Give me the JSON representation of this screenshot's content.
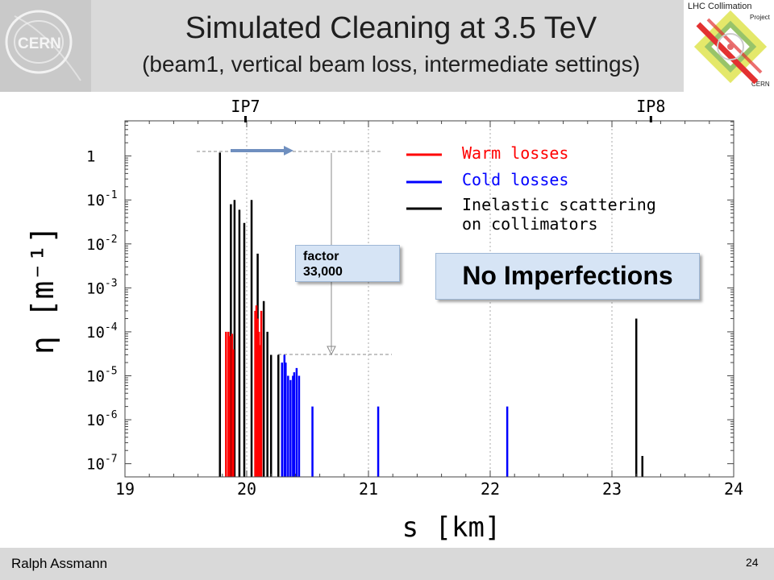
{
  "slide": {
    "title": "Simulated Cleaning at 3.5 TeV",
    "subtitle": "(beam1, vertical beam loss, intermediate settings)",
    "author": "Ralph Assmann",
    "page": "24",
    "logo_left": "CERN",
    "logo_right": {
      "title": "LHC Collimation",
      "project": "Project",
      "org": "CERN"
    }
  },
  "annotations": {
    "factor_line1": "factor",
    "factor_line2": "33,000",
    "no_imperfections": "No Imperfections"
  },
  "colors": {
    "warm": "#ff0000",
    "cold": "#0000ff",
    "inelastic": "#000000",
    "callout_bg": "#d6e4f5"
  },
  "chart_data": {
    "type": "bar",
    "xlabel": "s [km]",
    "ylabel": "η [m⁻¹]",
    "xlim": [
      19,
      24
    ],
    "ylim_log10": [
      -7.3,
      0.8
    ],
    "x_ticks": [
      {
        "value": 19,
        "label": "19"
      },
      {
        "value": 20,
        "label": "20"
      },
      {
        "value": 21,
        "label": "21"
      },
      {
        "value": 22,
        "label": "22"
      },
      {
        "value": 23,
        "label": "23"
      },
      {
        "value": 24,
        "label": "24"
      }
    ],
    "y_ticks": [
      {
        "exp": 0,
        "label": "1"
      },
      {
        "exp": -1,
        "label": "10",
        "sup": "-1"
      },
      {
        "exp": -2,
        "label": "10",
        "sup": "-2"
      },
      {
        "exp": -3,
        "label": "10",
        "sup": "-3"
      },
      {
        "exp": -4,
        "label": "10",
        "sup": "-4"
      },
      {
        "exp": -5,
        "label": "10",
        "sup": "-5"
      },
      {
        "exp": -6,
        "label": "10",
        "sup": "-6"
      },
      {
        "exp": -7,
        "label": "10",
        "sup": "-7"
      }
    ],
    "markers": [
      {
        "label": "IP7",
        "s": 19.99
      },
      {
        "label": "IP8",
        "s": 23.32
      }
    ],
    "legend": [
      "Warm losses",
      "Cold losses",
      "Inelastic scattering",
      "on collimators"
    ],
    "legend_position": "top-right",
    "series": [
      {
        "name": "Inelastic scattering on collimators",
        "color": "#000000",
        "s": [
          19.78,
          19.87,
          19.9,
          19.94,
          19.98,
          20.04,
          20.09,
          20.14,
          20.17,
          20.2,
          20.26,
          23.2,
          23.25
        ],
        "eta": [
          1.2,
          0.08,
          0.1,
          0.06,
          0.03,
          0.1,
          0.006,
          0.0005,
          0.0001,
          3e-05,
          3e-05,
          0.0002,
          1.5e-07
        ]
      },
      {
        "name": "Warm losses",
        "color": "#ff0000",
        "s": [
          19.83,
          19.85,
          19.86,
          19.88,
          19.89,
          20.07,
          20.08,
          20.09,
          20.1,
          20.11,
          20.12
        ],
        "eta": [
          0.0001,
          0.0001,
          8e-05,
          9e-05,
          4e-05,
          0.0003,
          0.0004,
          0.0002,
          0.0001,
          5e-05,
          0.0003
        ]
      },
      {
        "name": "Cold losses",
        "color": "#0000ff",
        "s": [
          20.29,
          20.31,
          20.32,
          20.34,
          20.36,
          20.38,
          20.39,
          20.41,
          20.43,
          20.54,
          21.08,
          22.14
        ],
        "eta": [
          2e-05,
          3e-05,
          2e-05,
          1e-05,
          8e-06,
          1e-05,
          1.2e-05,
          1.5e-05,
          1e-05,
          2e-06,
          2e-06,
          2e-06
        ]
      }
    ]
  }
}
